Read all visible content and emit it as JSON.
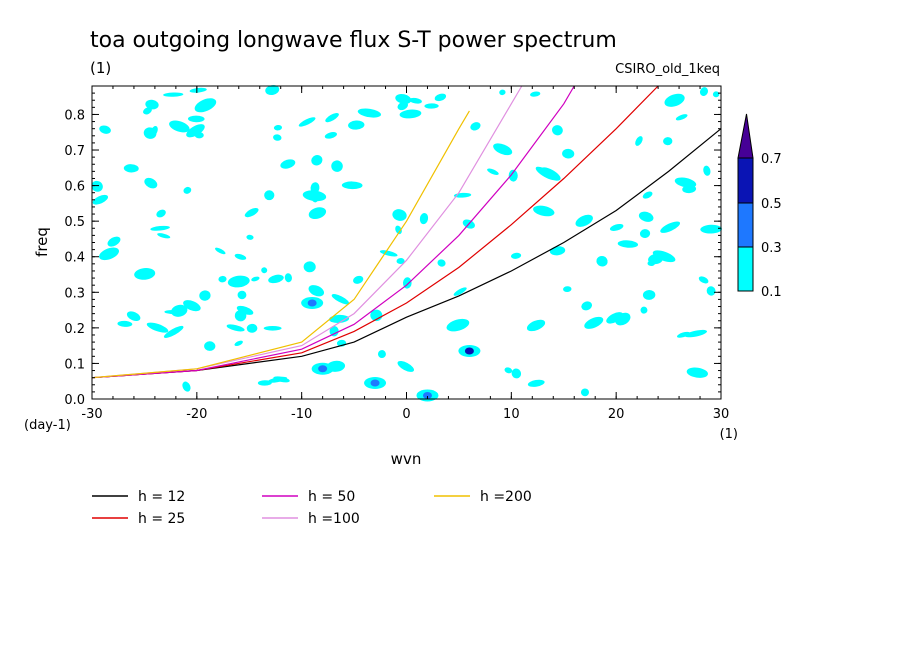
{
  "chart_data": {
    "type": "line",
    "title": "toa outgoing longwave flux S-T power spectrum",
    "subtitle_left": "(1)",
    "subtitle_right": "CSIRO_old_1keq",
    "xlabel": "wvn",
    "x_unit": "(1)",
    "ylabel": "freq",
    "y_unit": "(day-1)",
    "xlim": [
      -30,
      30
    ],
    "ylim": [
      0,
      0.88
    ],
    "x_ticks": [
      -30,
      -20,
      -10,
      0,
      10,
      20,
      30
    ],
    "x_tick_labels": [
      "-30",
      "-20",
      "-10",
      "0",
      "10",
      "20",
      "30"
    ],
    "y_ticks": [
      0,
      0.1,
      0.2,
      0.3,
      0.4,
      0.5,
      0.6,
      0.7,
      0.8
    ],
    "y_tick_labels": [
      "0.0",
      "0.1",
      "0.2",
      "0.3",
      "0.4",
      "0.5",
      "0.6",
      "0.7",
      "0.8"
    ],
    "series": [
      {
        "name": "h = 12",
        "color": "#000000",
        "x": [
          -30,
          -20,
          -10,
          -5,
          0,
          5,
          10,
          15,
          20,
          25,
          30
        ],
        "y": [
          0.06,
          0.08,
          0.12,
          0.16,
          0.23,
          0.29,
          0.36,
          0.44,
          0.53,
          0.64,
          0.76
        ]
      },
      {
        "name": "h = 25",
        "color": "#e00000",
        "x": [
          -30,
          -20,
          -10,
          -5,
          0,
          5,
          10,
          15,
          20,
          24
        ],
        "y": [
          0.06,
          0.08,
          0.13,
          0.19,
          0.27,
          0.37,
          0.49,
          0.62,
          0.76,
          0.88
        ]
      },
      {
        "name": "h = 50",
        "color": "#d000c0",
        "x": [
          -30,
          -20,
          -10,
          -5,
          0,
          5,
          10,
          15,
          16
        ],
        "y": [
          0.06,
          0.08,
          0.14,
          0.21,
          0.32,
          0.46,
          0.63,
          0.83,
          0.88
        ]
      },
      {
        "name": "h =100",
        "color": "#e090e0",
        "x": [
          -30,
          -20,
          -10,
          -5,
          0,
          5,
          10,
          11
        ],
        "y": [
          0.06,
          0.085,
          0.15,
          0.24,
          0.39,
          0.58,
          0.83,
          0.88
        ]
      },
      {
        "name": "h =200",
        "color": "#f0c000",
        "x": [
          -30,
          -20,
          -10,
          -5,
          0,
          5,
          6
        ],
        "y": [
          0.06,
          0.085,
          0.16,
          0.28,
          0.5,
          0.76,
          0.81
        ]
      }
    ],
    "colorbar": {
      "levels": [
        "0.1",
        "0.3",
        "0.5",
        "0.7"
      ],
      "colors": [
        "#00ffff",
        "#1e78ff",
        "#0a14b4",
        "#460096"
      ]
    },
    "grid": false,
    "legend": "bottom"
  }
}
